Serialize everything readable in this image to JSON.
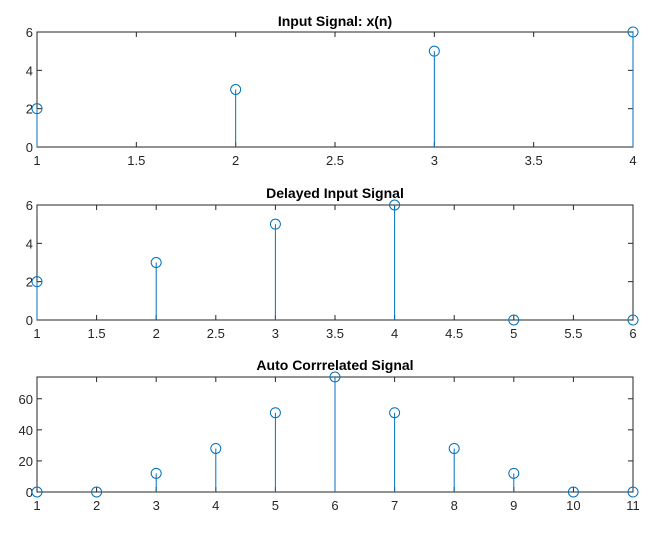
{
  "colors": {
    "stem": "#0072BD",
    "axis": "#262626",
    "background": "#ffffff"
  },
  "chart_data": [
    {
      "type": "stem",
      "title": "Input Signal: x(n)",
      "x": [
        1,
        2,
        3,
        4
      ],
      "y": [
        2,
        3,
        5,
        6
      ],
      "xlim": [
        1,
        4
      ],
      "ylim": [
        0,
        6
      ],
      "xticks": [
        1,
        1.5,
        2,
        2.5,
        3,
        3.5,
        4
      ],
      "yticks": [
        0,
        2,
        4,
        6
      ],
      "grid": false
    },
    {
      "type": "stem",
      "title": "Delayed Input Signal",
      "x": [
        1,
        2,
        3,
        4,
        5,
        6
      ],
      "y": [
        2,
        3,
        5,
        6,
        0,
        0
      ],
      "xlim": [
        1,
        6
      ],
      "ylim": [
        0,
        6
      ],
      "xticks": [
        1,
        1.5,
        2,
        2.5,
        3,
        3.5,
        4,
        4.5,
        5,
        5.5,
        6
      ],
      "yticks": [
        0,
        2,
        4,
        6
      ],
      "grid": false
    },
    {
      "type": "stem",
      "title": "Auto Corrrelated Signal",
      "x": [
        1,
        2,
        3,
        4,
        5,
        6,
        7,
        8,
        9,
        10,
        11
      ],
      "y": [
        0,
        0,
        12,
        28,
        51,
        74,
        51,
        28,
        12,
        0,
        0
      ],
      "xlim": [
        1,
        11
      ],
      "ylim": [
        0,
        74
      ],
      "xticks": [
        1,
        2,
        3,
        4,
        5,
        6,
        7,
        8,
        9,
        10,
        11
      ],
      "yticks": [
        0,
        20,
        40,
        60
      ],
      "grid": false
    }
  ]
}
